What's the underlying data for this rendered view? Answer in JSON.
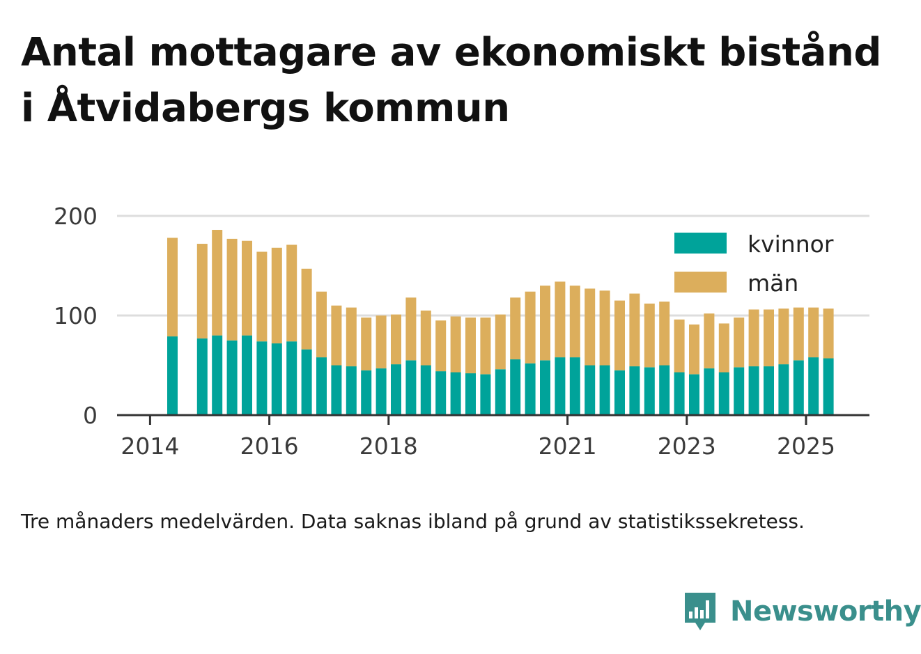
{
  "title": "Antal mottagare av ekonomiskt bistånd i Åtvidabergs kommun",
  "footnote": "Tre månaders medelvärden. Data saknas ibland på grund av statistikssekretess.",
  "brand": {
    "name": "Newsworthy",
    "icon": "bar-chart-speech-bubble-icon"
  },
  "colors": {
    "kvinnor": "#00a39a",
    "man": "#dcae5c",
    "grid": "#dddddd",
    "axis": "#333333",
    "brand": "#3a8f8c"
  },
  "chart_data": {
    "type": "bar",
    "stacked": true,
    "x_unit": "quarter",
    "periods": [
      "2014-Q2",
      "2014-Q3",
      "2014-Q4",
      "2015-Q1",
      "2015-Q2",
      "2015-Q3",
      "2015-Q4",
      "2016-Q1",
      "2016-Q2",
      "2016-Q3",
      "2016-Q4",
      "2017-Q1",
      "2017-Q2",
      "2017-Q3",
      "2017-Q4",
      "2018-Q1",
      "2018-Q2",
      "2018-Q3",
      "2018-Q4",
      "2019-Q1",
      "2019-Q2",
      "2019-Q3",
      "2019-Q4",
      "2020-Q1",
      "2020-Q2",
      "2020-Q3",
      "2020-Q4",
      "2021-Q1",
      "2021-Q2",
      "2021-Q3",
      "2021-Q4",
      "2022-Q1",
      "2022-Q2",
      "2022-Q3",
      "2022-Q4",
      "2023-Q1",
      "2023-Q2",
      "2023-Q3",
      "2023-Q4",
      "2024-Q1",
      "2024-Q2",
      "2024-Q3",
      "2024-Q4",
      "2025-Q1",
      "2025-Q2"
    ],
    "series": [
      {
        "name": "kvinnor",
        "values": [
          79,
          null,
          77,
          80,
          75,
          80,
          74,
          72,
          74,
          66,
          58,
          50,
          49,
          45,
          47,
          51,
          55,
          50,
          44,
          43,
          42,
          41,
          46,
          56,
          52,
          55,
          58,
          58,
          50,
          50,
          45,
          49,
          48,
          50,
          43,
          41,
          47,
          43,
          48,
          49,
          49,
          51,
          55,
          58,
          57
        ]
      },
      {
        "name": "män",
        "values": [
          99,
          null,
          95,
          106,
          102,
          95,
          90,
          96,
          97,
          81,
          66,
          60,
          59,
          53,
          53,
          50,
          63,
          55,
          51,
          56,
          56,
          57,
          55,
          62,
          72,
          75,
          76,
          72,
          77,
          75,
          70,
          73,
          64,
          64,
          53,
          50,
          55,
          49,
          50,
          57,
          57,
          56,
          53,
          50,
          50
        ]
      }
    ],
    "x_ticks": [
      "2014",
      "2016",
      "2018",
      "2021",
      "2023",
      "2025"
    ],
    "y_ticks": [
      0,
      100,
      200
    ],
    "ylim": [
      0,
      200
    ],
    "grid": true,
    "legend_position": "top-right",
    "legend": [
      "kvinnor",
      "män"
    ]
  }
}
